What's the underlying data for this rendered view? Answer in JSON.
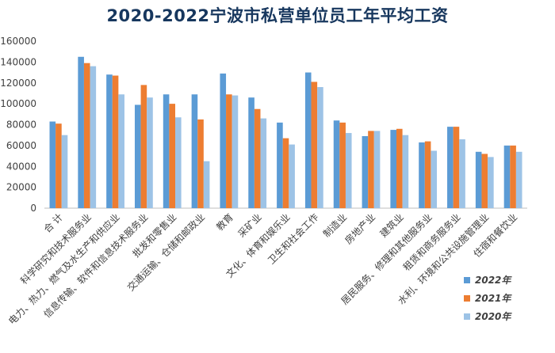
{
  "chart_data": {
    "type": "bar",
    "title": "2020-2022宁波市私营单位员工年平均工资",
    "xlabel": "",
    "ylabel": "",
    "ylim": [
      0,
      160000
    ],
    "yticks": [
      0,
      20000,
      40000,
      60000,
      80000,
      100000,
      120000,
      140000,
      160000
    ],
    "grid": false,
    "legend_position": "right",
    "categories": [
      "合 计",
      "科学研究和技术服务业",
      "电力、热力、燃气及水生产和供应业",
      "信息传输、软件和信息技术服务业",
      "批发和零售业",
      "交通运输、仓储和邮政业",
      "教育",
      "采矿业",
      "文化、体育和娱乐业",
      "卫生和社会工作",
      "制造业",
      "房地产业",
      "建筑业",
      "居民服务、修理和其他服务业",
      "租赁和商务服务业",
      "水利、环境和公共设施管理业",
      "住宿和餐饮业"
    ],
    "series": [
      {
        "name": "2022年",
        "color": "#5b9bd5",
        "values": [
          83000,
          145000,
          128000,
          99000,
          109000,
          109000,
          129000,
          106000,
          82000,
          130000,
          84000,
          69000,
          75000,
          63000,
          78000,
          54000,
          60000
        ]
      },
      {
        "name": "2021年",
        "color": "#ed7d31",
        "values": [
          81000,
          139000,
          127000,
          118000,
          100000,
          85000,
          109000,
          95000,
          67000,
          121000,
          82000,
          74000,
          76000,
          64000,
          78000,
          52000,
          60000
        ]
      },
      {
        "name": "2020年",
        "color": "#9dc3e6",
        "values": [
          70000,
          136000,
          109000,
          106000,
          87000,
          45000,
          108000,
          86000,
          61000,
          116000,
          72000,
          74000,
          70000,
          55000,
          66000,
          49000,
          54000
        ]
      }
    ]
  }
}
